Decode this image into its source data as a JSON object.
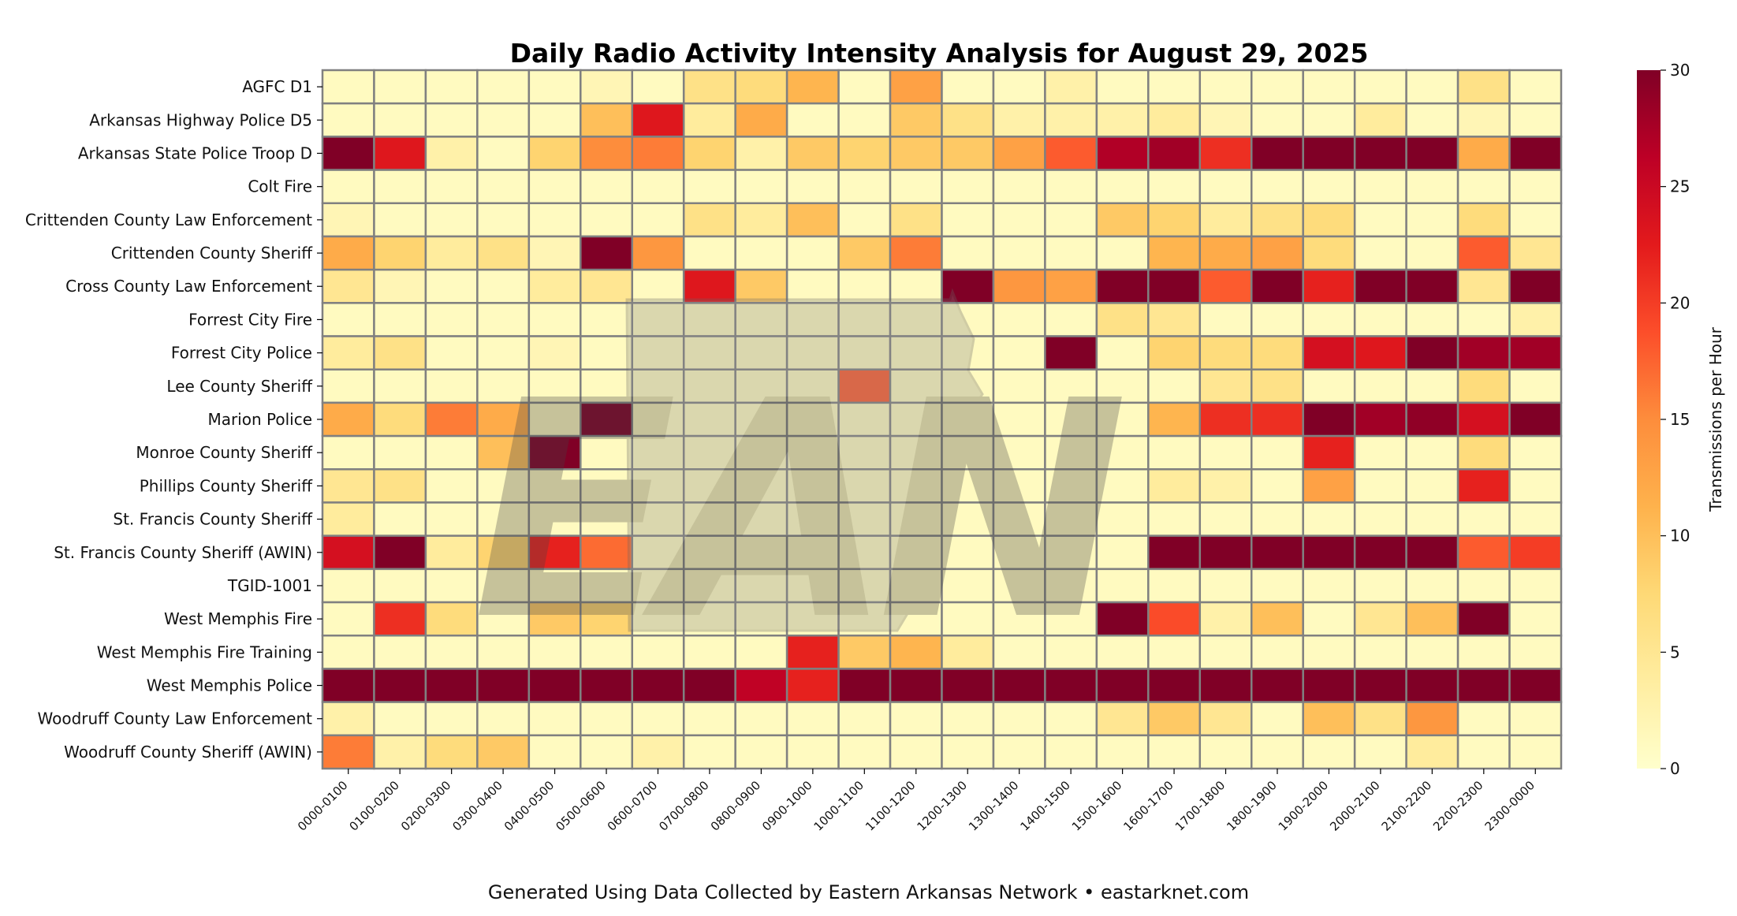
{
  "chart_data": {
    "type": "heatmap",
    "title": "Daily Radio Activity Intensity Analysis for August 29, 2025",
    "colorbar_label": "Transmissions per Hour",
    "colorbar_range": [
      0,
      30
    ],
    "colorbar_ticks": [
      "0",
      "5",
      "10",
      "15",
      "20",
      "25",
      "30"
    ],
    "colormap": "YlOrRd",
    "rows": [
      "AGFC D1",
      "Arkansas Highway Police D5",
      "Arkansas State Police Troop D",
      "Colt Fire",
      "Crittenden County Law Enforcement",
      "Crittenden County Sheriff",
      "Cross County Law Enforcement",
      "Forrest City Fire",
      "Forrest City Police",
      "Lee County Sheriff",
      "Marion Police",
      "Monroe County Sheriff",
      "Phillips County Sheriff",
      "St. Francis County Sheriff",
      "St. Francis County Sheriff (AWIN)",
      "TGID-1001",
      "West Memphis Fire",
      "West Memphis Fire Training",
      "West Memphis Police",
      "Woodruff County Law Enforcement",
      "Woodruff County Sheriff (AWIN)"
    ],
    "columns": [
      "0000-0100",
      "0100-0200",
      "0200-0300",
      "0300-0400",
      "0400-0500",
      "0500-0600",
      "0600-0700",
      "0700-0800",
      "0800-0900",
      "0900-1000",
      "1000-1100",
      "1100-1200",
      "1200-1300",
      "1300-1400",
      "1400-1500",
      "1500-1600",
      "1600-1700",
      "1700-1800",
      "1800-1900",
      "1900-2000",
      "2000-2100",
      "2100-2200",
      "2200-2300",
      "2300-0000"
    ],
    "values": [
      [
        1,
        1,
        1,
        1,
        1,
        2,
        1,
        6,
        7,
        11,
        1,
        13,
        1,
        1,
        3,
        1,
        1,
        1,
        1,
        1,
        1,
        1,
        6,
        1
      ],
      [
        1,
        1,
        1,
        1,
        1,
        10,
        23,
        4,
        12,
        1,
        1,
        9,
        6,
        3,
        3,
        3,
        4,
        2,
        1,
        1,
        4,
        1,
        2,
        1
      ],
      [
        30,
        23,
        3,
        1,
        8,
        15,
        16,
        8,
        3,
        9,
        8,
        9,
        9,
        13,
        18,
        27,
        28,
        21,
        30,
        30,
        30,
        30,
        12,
        30
      ],
      [
        1,
        1,
        1,
        1,
        1,
        1,
        1,
        1,
        1,
        1,
        1,
        1,
        1,
        1,
        1,
        1,
        1,
        1,
        1,
        1,
        1,
        1,
        1,
        1
      ],
      [
        2,
        1,
        1,
        1,
        1,
        1,
        1,
        6,
        4,
        10,
        1,
        6,
        1,
        1,
        1,
        9,
        8,
        4,
        6,
        7,
        1,
        1,
        7,
        1
      ],
      [
        12,
        8,
        4,
        6,
        2,
        30,
        14,
        1,
        1,
        1,
        9,
        16,
        1,
        1,
        1,
        1,
        11,
        12,
        13,
        7,
        1,
        1,
        18,
        5
      ],
      [
        5,
        2,
        1,
        1,
        4,
        5,
        1,
        23,
        9,
        1,
        1,
        1,
        30,
        14,
        13,
        30,
        30,
        18,
        30,
        22,
        30,
        30,
        5,
        30
      ],
      [
        1,
        1,
        1,
        1,
        1,
        1,
        1,
        1,
        1,
        1,
        1,
        1,
        1,
        1,
        1,
        6,
        5,
        1,
        1,
        1,
        1,
        1,
        1,
        3
      ],
      [
        4,
        6,
        1,
        1,
        2,
        1,
        1,
        1,
        1,
        1,
        1,
        1,
        1,
        1,
        30,
        1,
        8,
        7,
        7,
        24,
        23,
        30,
        28,
        28
      ],
      [
        1,
        1,
        1,
        1,
        1,
        1,
        1,
        1,
        1,
        1,
        18,
        1,
        1,
        1,
        1,
        1,
        1,
        5,
        6,
        1,
        1,
        1,
        7,
        1
      ],
      [
        12,
        7,
        16,
        12,
        1,
        30,
        1,
        1,
        1,
        1,
        1,
        1,
        1,
        1,
        1,
        1,
        11,
        21,
        21,
        30,
        28,
        29,
        24,
        30
      ],
      [
        1,
        1,
        1,
        10,
        30,
        1,
        1,
        1,
        1,
        1,
        1,
        1,
        1,
        1,
        1,
        1,
        1,
        1,
        1,
        22,
        1,
        1,
        7,
        1
      ],
      [
        5,
        6,
        1,
        1,
        1,
        1,
        1,
        1,
        1,
        1,
        1,
        1,
        1,
        1,
        1,
        1,
        4,
        3,
        1,
        13,
        1,
        1,
        22,
        1
      ],
      [
        4,
        1,
        1,
        1,
        1,
        1,
        1,
        1,
        1,
        1,
        1,
        1,
        1,
        1,
        1,
        1,
        1,
        1,
        1,
        1,
        1,
        1,
        1,
        1
      ],
      [
        24,
        30,
        4,
        8,
        22,
        17,
        1,
        1,
        1,
        1,
        1,
        1,
        1,
        1,
        1,
        1,
        30,
        30,
        30,
        30,
        30,
        30,
        18,
        20
      ],
      [
        1,
        1,
        1,
        1,
        1,
        1,
        1,
        1,
        1,
        1,
        1,
        1,
        1,
        1,
        1,
        1,
        1,
        1,
        1,
        1,
        1,
        1,
        1,
        1
      ],
      [
        1,
        21,
        7,
        1,
        9,
        8,
        1,
        1,
        1,
        1,
        1,
        1,
        1,
        1,
        1,
        30,
        19,
        3,
        10,
        1,
        5,
        10,
        30,
        1
      ],
      [
        1,
        1,
        1,
        1,
        1,
        1,
        1,
        1,
        1,
        22,
        9,
        11,
        4,
        1,
        1,
        1,
        1,
        1,
        1,
        1,
        1,
        1,
        1,
        1
      ],
      [
        30,
        30,
        30,
        30,
        30,
        30,
        30,
        30,
        26,
        22,
        30,
        30,
        30,
        30,
        30,
        30,
        30,
        30,
        30,
        30,
        30,
        30,
        30,
        30
      ],
      [
        3,
        1,
        1,
        1,
        1,
        1,
        1,
        1,
        1,
        1,
        1,
        1,
        1,
        1,
        1,
        5,
        9,
        5,
        1,
        10,
        6,
        14,
        1,
        1
      ],
      [
        16,
        3,
        7,
        9,
        1,
        1,
        3,
        1,
        1,
        1,
        1,
        1,
        1,
        1,
        1,
        1,
        1,
        1,
        1,
        1,
        1,
        4,
        1,
        1
      ]
    ]
  },
  "footer_text": "Generated Using Data Collected by Eastern Arkansas Network • eastarknet.com",
  "watermark": {
    "icon_name": "ean-arkansas-logo-watermark",
    "text": "EAN"
  }
}
